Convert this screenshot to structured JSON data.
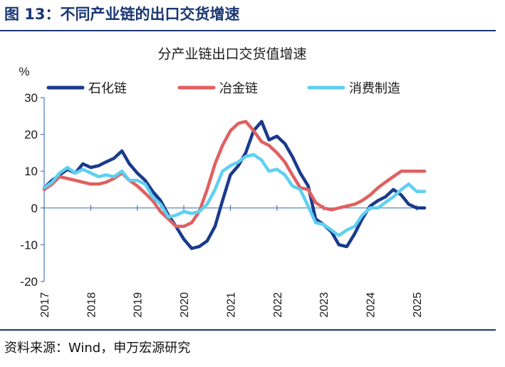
{
  "figure": {
    "title": "图 13：不同产业链的出口交货增速",
    "source": "资料来源：Wind，申万宏源研究"
  },
  "colors": {
    "header": "#1a3773",
    "axis": "#4a78c2",
    "text": "#1a1a1a"
  },
  "chart_data": {
    "type": "line",
    "title": "分产业链出口交货值增速",
    "ylabel": "%",
    "ylim": [
      -20,
      30
    ],
    "yticks": [
      "-20",
      "-10",
      "0",
      "10",
      "20",
      "30"
    ],
    "yticks_values": [
      -20,
      -10,
      0,
      10,
      20,
      30
    ],
    "xticks": [
      "2017",
      "2018",
      "2019",
      "2020",
      "2021",
      "2022",
      "2023",
      "2024",
      "2025"
    ],
    "xticks_values": [
      2017,
      2018,
      2019,
      2020,
      2021,
      2022,
      2023,
      2024,
      2025
    ],
    "xlim": [
      2017,
      2025.2
    ],
    "grid": false,
    "legend": "top",
    "series": [
      {
        "name": "石化链",
        "color": "#1a3a8c",
        "x": [
          2017.0,
          2017.17,
          2017.33,
          2017.5,
          2017.67,
          2017.83,
          2018.0,
          2018.17,
          2018.33,
          2018.5,
          2018.67,
          2018.83,
          2019.0,
          2019.17,
          2019.33,
          2019.5,
          2019.67,
          2019.83,
          2020.0,
          2020.17,
          2020.33,
          2020.5,
          2020.67,
          2020.83,
          2021.0,
          2021.17,
          2021.33,
          2021.5,
          2021.67,
          2021.83,
          2022.0,
          2022.17,
          2022.33,
          2022.5,
          2022.67,
          2022.83,
          2023.0,
          2023.17,
          2023.33,
          2023.5,
          2023.67,
          2023.83,
          2024.0,
          2024.17,
          2024.33,
          2024.5,
          2024.67,
          2024.83,
          2025.0,
          2025.17
        ],
        "values": [
          5.5,
          7.5,
          9.0,
          10.5,
          9.5,
          12.0,
          11.0,
          11.5,
          12.5,
          13.5,
          15.5,
          12.0,
          9.5,
          7.5,
          4.5,
          2.0,
          -2.0,
          -5.0,
          -8.5,
          -11.0,
          -10.5,
          -9.0,
          -5.0,
          2.0,
          9.0,
          11.5,
          15.0,
          21.0,
          23.5,
          18.5,
          19.5,
          17.5,
          14.0,
          9.5,
          6.0,
          -3.0,
          -4.5,
          -6.5,
          -10.0,
          -10.5,
          -7.0,
          -3.0,
          0.5,
          2.0,
          3.0,
          5.0,
          3.5,
          1.0,
          0.0,
          0.0
        ]
      },
      {
        "name": "冶金链",
        "color": "#e06060",
        "x": [
          2017.0,
          2017.17,
          2017.33,
          2017.5,
          2017.67,
          2017.83,
          2018.0,
          2018.17,
          2018.33,
          2018.5,
          2018.67,
          2018.83,
          2019.0,
          2019.17,
          2019.33,
          2019.5,
          2019.67,
          2019.83,
          2020.0,
          2020.17,
          2020.33,
          2020.5,
          2020.67,
          2020.83,
          2021.0,
          2021.17,
          2021.33,
          2021.5,
          2021.67,
          2021.83,
          2022.0,
          2022.17,
          2022.33,
          2022.5,
          2022.67,
          2022.83,
          2023.0,
          2023.17,
          2023.33,
          2023.5,
          2023.67,
          2023.83,
          2024.0,
          2024.17,
          2024.33,
          2024.5,
          2024.67,
          2024.83,
          2025.0,
          2025.17
        ],
        "values": [
          5.0,
          6.5,
          8.5,
          8.0,
          7.5,
          7.0,
          6.5,
          6.5,
          7.0,
          8.0,
          9.5,
          7.5,
          6.0,
          4.0,
          2.0,
          -1.0,
          -3.0,
          -5.0,
          -5.0,
          -4.0,
          -1.0,
          5.0,
          12.0,
          17.0,
          21.0,
          23.0,
          23.5,
          21.0,
          18.0,
          17.0,
          15.0,
          12.5,
          9.0,
          5.5,
          5.0,
          1.5,
          0.0,
          -0.5,
          0.0,
          0.5,
          1.0,
          2.0,
          3.5,
          5.5,
          7.0,
          8.5,
          10.0,
          10.0,
          10.0,
          10.0
        ]
      },
      {
        "name": "消费制造",
        "color": "#5fd0f0",
        "x": [
          2017.0,
          2017.17,
          2017.33,
          2017.5,
          2017.67,
          2017.83,
          2018.0,
          2018.17,
          2018.33,
          2018.5,
          2018.67,
          2018.83,
          2019.0,
          2019.17,
          2019.33,
          2019.5,
          2019.67,
          2019.83,
          2020.0,
          2020.17,
          2020.33,
          2020.5,
          2020.67,
          2020.83,
          2021.0,
          2021.17,
          2021.33,
          2021.5,
          2021.67,
          2021.83,
          2022.0,
          2022.17,
          2022.33,
          2022.5,
          2022.67,
          2022.83,
          2023.0,
          2023.17,
          2023.33,
          2023.5,
          2023.67,
          2023.83,
          2024.0,
          2024.17,
          2024.33,
          2024.5,
          2024.67,
          2024.83,
          2025.0,
          2025.17
        ],
        "values": [
          5.5,
          7.0,
          9.5,
          11.0,
          9.5,
          10.5,
          9.5,
          8.5,
          9.0,
          8.5,
          10.0,
          7.5,
          7.5,
          6.5,
          3.0,
          1.0,
          -2.5,
          -2.0,
          -1.0,
          -1.5,
          -1.0,
          1.0,
          5.0,
          10.0,
          11.5,
          12.5,
          14.0,
          14.5,
          13.0,
          10.0,
          10.5,
          9.0,
          6.0,
          5.0,
          0.5,
          -4.0,
          -4.5,
          -6.0,
          -7.5,
          -6.0,
          -5.0,
          -2.0,
          0.0,
          0.0,
          1.5,
          3.0,
          5.0,
          6.5,
          4.5,
          4.5
        ]
      }
    ]
  }
}
